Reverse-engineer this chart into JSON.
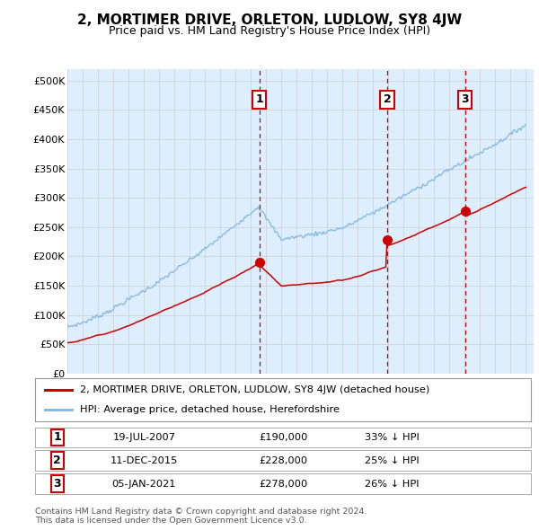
{
  "title": "2, MORTIMER DRIVE, ORLETON, LUDLOW, SY8 4JW",
  "subtitle": "Price paid vs. HM Land Registry's House Price Index (HPI)",
  "ylim": [
    0,
    520000
  ],
  "yticks": [
    0,
    50000,
    100000,
    150000,
    200000,
    250000,
    300000,
    350000,
    400000,
    450000,
    500000
  ],
  "ytick_labels": [
    "£0",
    "£50K",
    "£100K",
    "£150K",
    "£200K",
    "£250K",
    "£300K",
    "£350K",
    "£400K",
    "£450K",
    "£500K"
  ],
  "hpi_color": "#88bbdd",
  "price_color": "#cc0000",
  "vline_color": "#cc0000",
  "grid_color": "#cccccc",
  "background_color": "#ffffff",
  "plot_bg_color": "#ddeeff",
  "sale_times": [
    2007.548,
    2015.942,
    2021.014
  ],
  "sale_prices": [
    190000,
    228000,
    278000
  ],
  "sale_labels": [
    "1",
    "2",
    "3"
  ],
  "sale_date_strs": [
    "19-JUL-2007",
    "11-DEC-2015",
    "05-JAN-2021"
  ],
  "sale_price_strs": [
    "£190,000",
    "£228,000",
    "£278,000"
  ],
  "sale_pct_strs": [
    "33% ↓ HPI",
    "25% ↓ HPI",
    "26% ↓ HPI"
  ],
  "legend_line1": "2, MORTIMER DRIVE, ORLETON, LUDLOW, SY8 4JW (detached house)",
  "legend_line2": "HPI: Average price, detached house, Herefordshire",
  "footer1": "Contains HM Land Registry data © Crown copyright and database right 2024.",
  "footer2": "This data is licensed under the Open Government Licence v3.0."
}
